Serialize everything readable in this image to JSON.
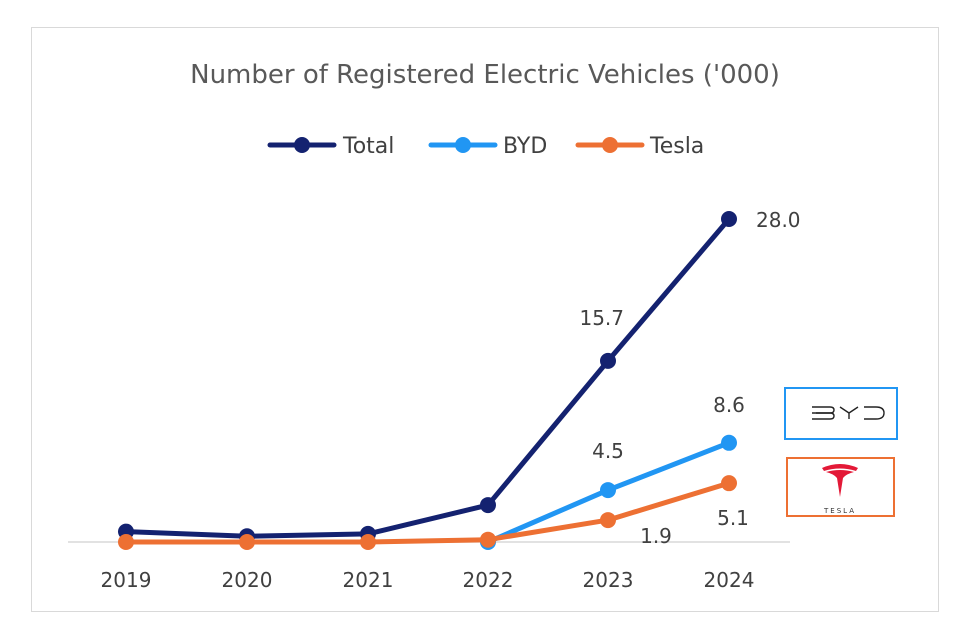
{
  "chart_data": {
    "type": "line",
    "title": "Number of Registered Electric Vehicles ('000)",
    "categories": [
      "2019",
      "2020",
      "2021",
      "2022",
      "2023",
      "2024"
    ],
    "series": [
      {
        "name": "Total",
        "color": "#142270",
        "values": [
          0.9,
          0.5,
          0.7,
          3.2,
          15.7,
          28.0
        ],
        "labels": [
          "",
          "",
          "",
          "",
          "15.7",
          "28.0"
        ]
      },
      {
        "name": "BYD",
        "color": "#2196f3",
        "values": [
          null,
          null,
          null,
          0.0,
          4.5,
          8.6
        ],
        "labels": [
          "",
          "",
          "",
          "",
          "4.5",
          "8.6"
        ]
      },
      {
        "name": "Tesla",
        "color": "#ed7033",
        "values": [
          0.0,
          0.0,
          0.0,
          0.2,
          1.9,
          5.1
        ],
        "labels": [
          "",
          "",
          "",
          "",
          "1.9",
          "5.1"
        ]
      }
    ],
    "ylim": [
      0,
      28.0
    ],
    "grid": false,
    "legend_position": "top"
  },
  "logos": {
    "byd": {
      "text": "BYD",
      "border_color": "#2196f3"
    },
    "tesla": {
      "text": "TESLA",
      "border_color": "#ed7033",
      "mark_color": "#e31937"
    }
  }
}
